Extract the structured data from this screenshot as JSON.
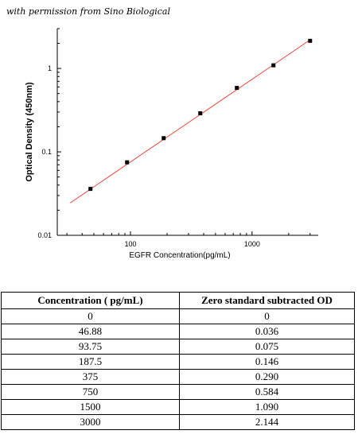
{
  "caption": "with permission from Sino Biological",
  "chart_data": {
    "type": "scatter",
    "xlabel": "EGFR  Concentration(pg/mL)",
    "ylabel": "Optical Density (450nm)",
    "x_scale": "log",
    "y_scale": "log",
    "xlim": [
      25,
      3500
    ],
    "ylim": [
      0.01,
      3
    ],
    "x_ticks": [
      {
        "value": 100,
        "label": "100"
      },
      {
        "value": 1000,
        "label": "1000"
      }
    ],
    "y_ticks": [
      {
        "value": 0.01,
        "label": "0.01"
      },
      {
        "value": 0.1,
        "label": "0.1"
      },
      {
        "value": 1,
        "label": "1"
      }
    ],
    "points": [
      {
        "x": 46.88,
        "y": 0.036
      },
      {
        "x": 93.75,
        "y": 0.075
      },
      {
        "x": 187.5,
        "y": 0.146
      },
      {
        "x": 375,
        "y": 0.29
      },
      {
        "x": 750,
        "y": 0.584
      },
      {
        "x": 1500,
        "y": 1.09
      },
      {
        "x": 3000,
        "y": 2.144
      }
    ],
    "fit_line": {
      "x": [
        32,
        3000
      ],
      "y": [
        0.0245,
        2.2
      ]
    },
    "marker_color": "#000000",
    "fit_color": "#e8453c"
  },
  "table": {
    "headers": [
      "Concentration ( pg/mL)",
      "Zero standard subtracted OD"
    ],
    "rows": [
      [
        "0",
        "0"
      ],
      [
        "46.88",
        "0.036"
      ],
      [
        "93.75",
        "0.075"
      ],
      [
        "187.5",
        "0.146"
      ],
      [
        "375",
        "0.290"
      ],
      [
        "750",
        "0.584"
      ],
      [
        "1500",
        "1.090"
      ],
      [
        "3000",
        "2.144"
      ]
    ]
  }
}
